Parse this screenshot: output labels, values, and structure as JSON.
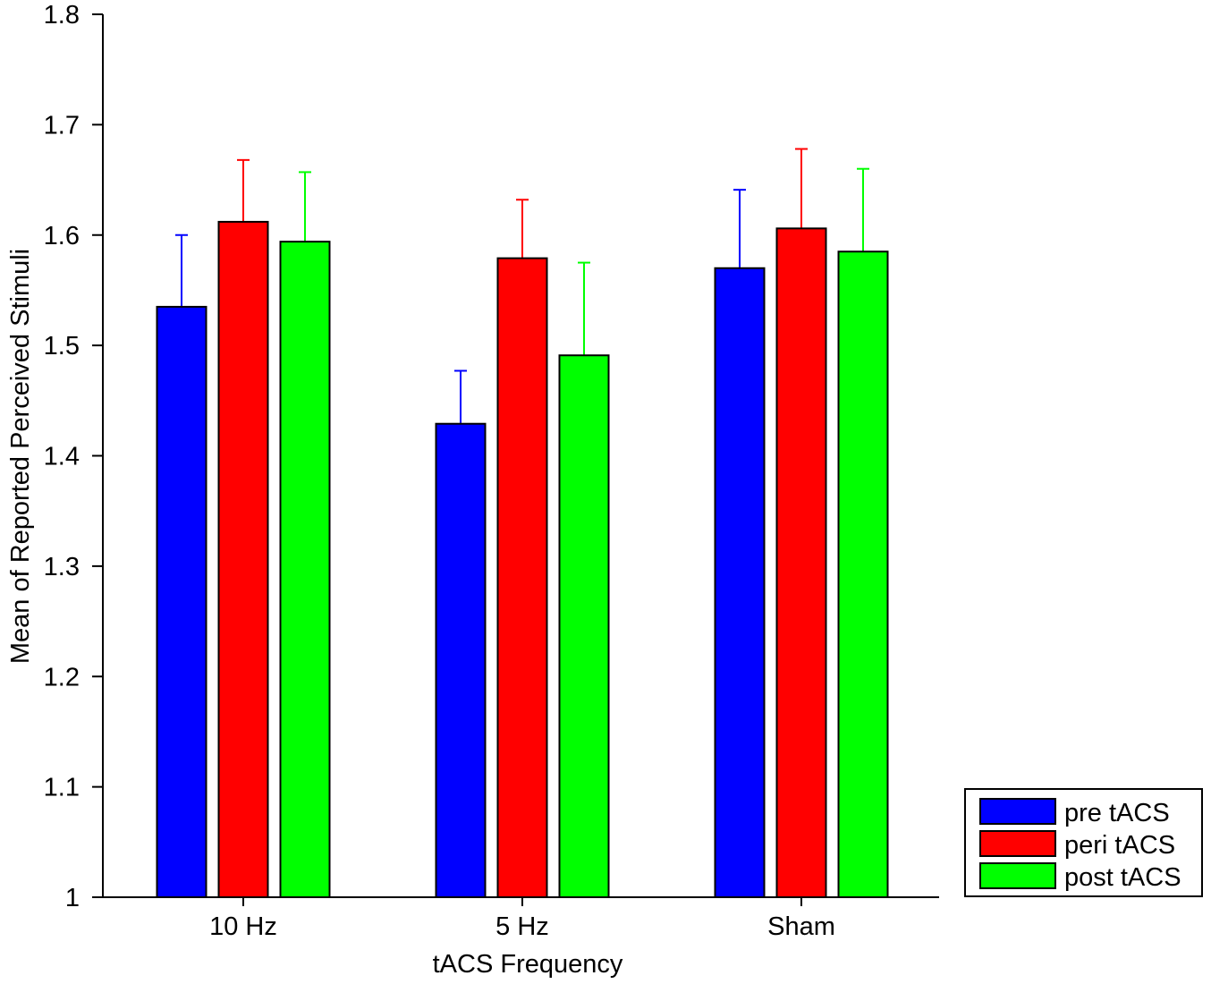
{
  "chart_data": {
    "type": "bar",
    "title": "",
    "xlabel": "tACS Frequency",
    "ylabel": "Mean of Reported Perceived Stimuli",
    "ylim": [
      1,
      1.8
    ],
    "yticks": [
      "1",
      "1.1",
      "1.2",
      "1.3",
      "1.4",
      "1.5",
      "1.6",
      "1.7",
      "1.8"
    ],
    "categories": [
      "10 Hz",
      "5 Hz",
      "Sham"
    ],
    "series": [
      {
        "name": "pre tACS",
        "color": "#0000ff",
        "values": [
          1.535,
          1.429,
          1.57
        ],
        "errors": [
          0.065,
          0.048,
          0.071
        ]
      },
      {
        "name": "peri tACS",
        "color": "#ff0000",
        "values": [
          1.612,
          1.579,
          1.606
        ],
        "errors": [
          0.056,
          0.053,
          0.072
        ]
      },
      {
        "name": "post tACS",
        "color": "#00ff00",
        "values": [
          1.594,
          1.491,
          1.585
        ],
        "errors": [
          0.063,
          0.084,
          0.075
        ]
      }
    ],
    "grid": false,
    "legend_position": "bottom-right"
  }
}
